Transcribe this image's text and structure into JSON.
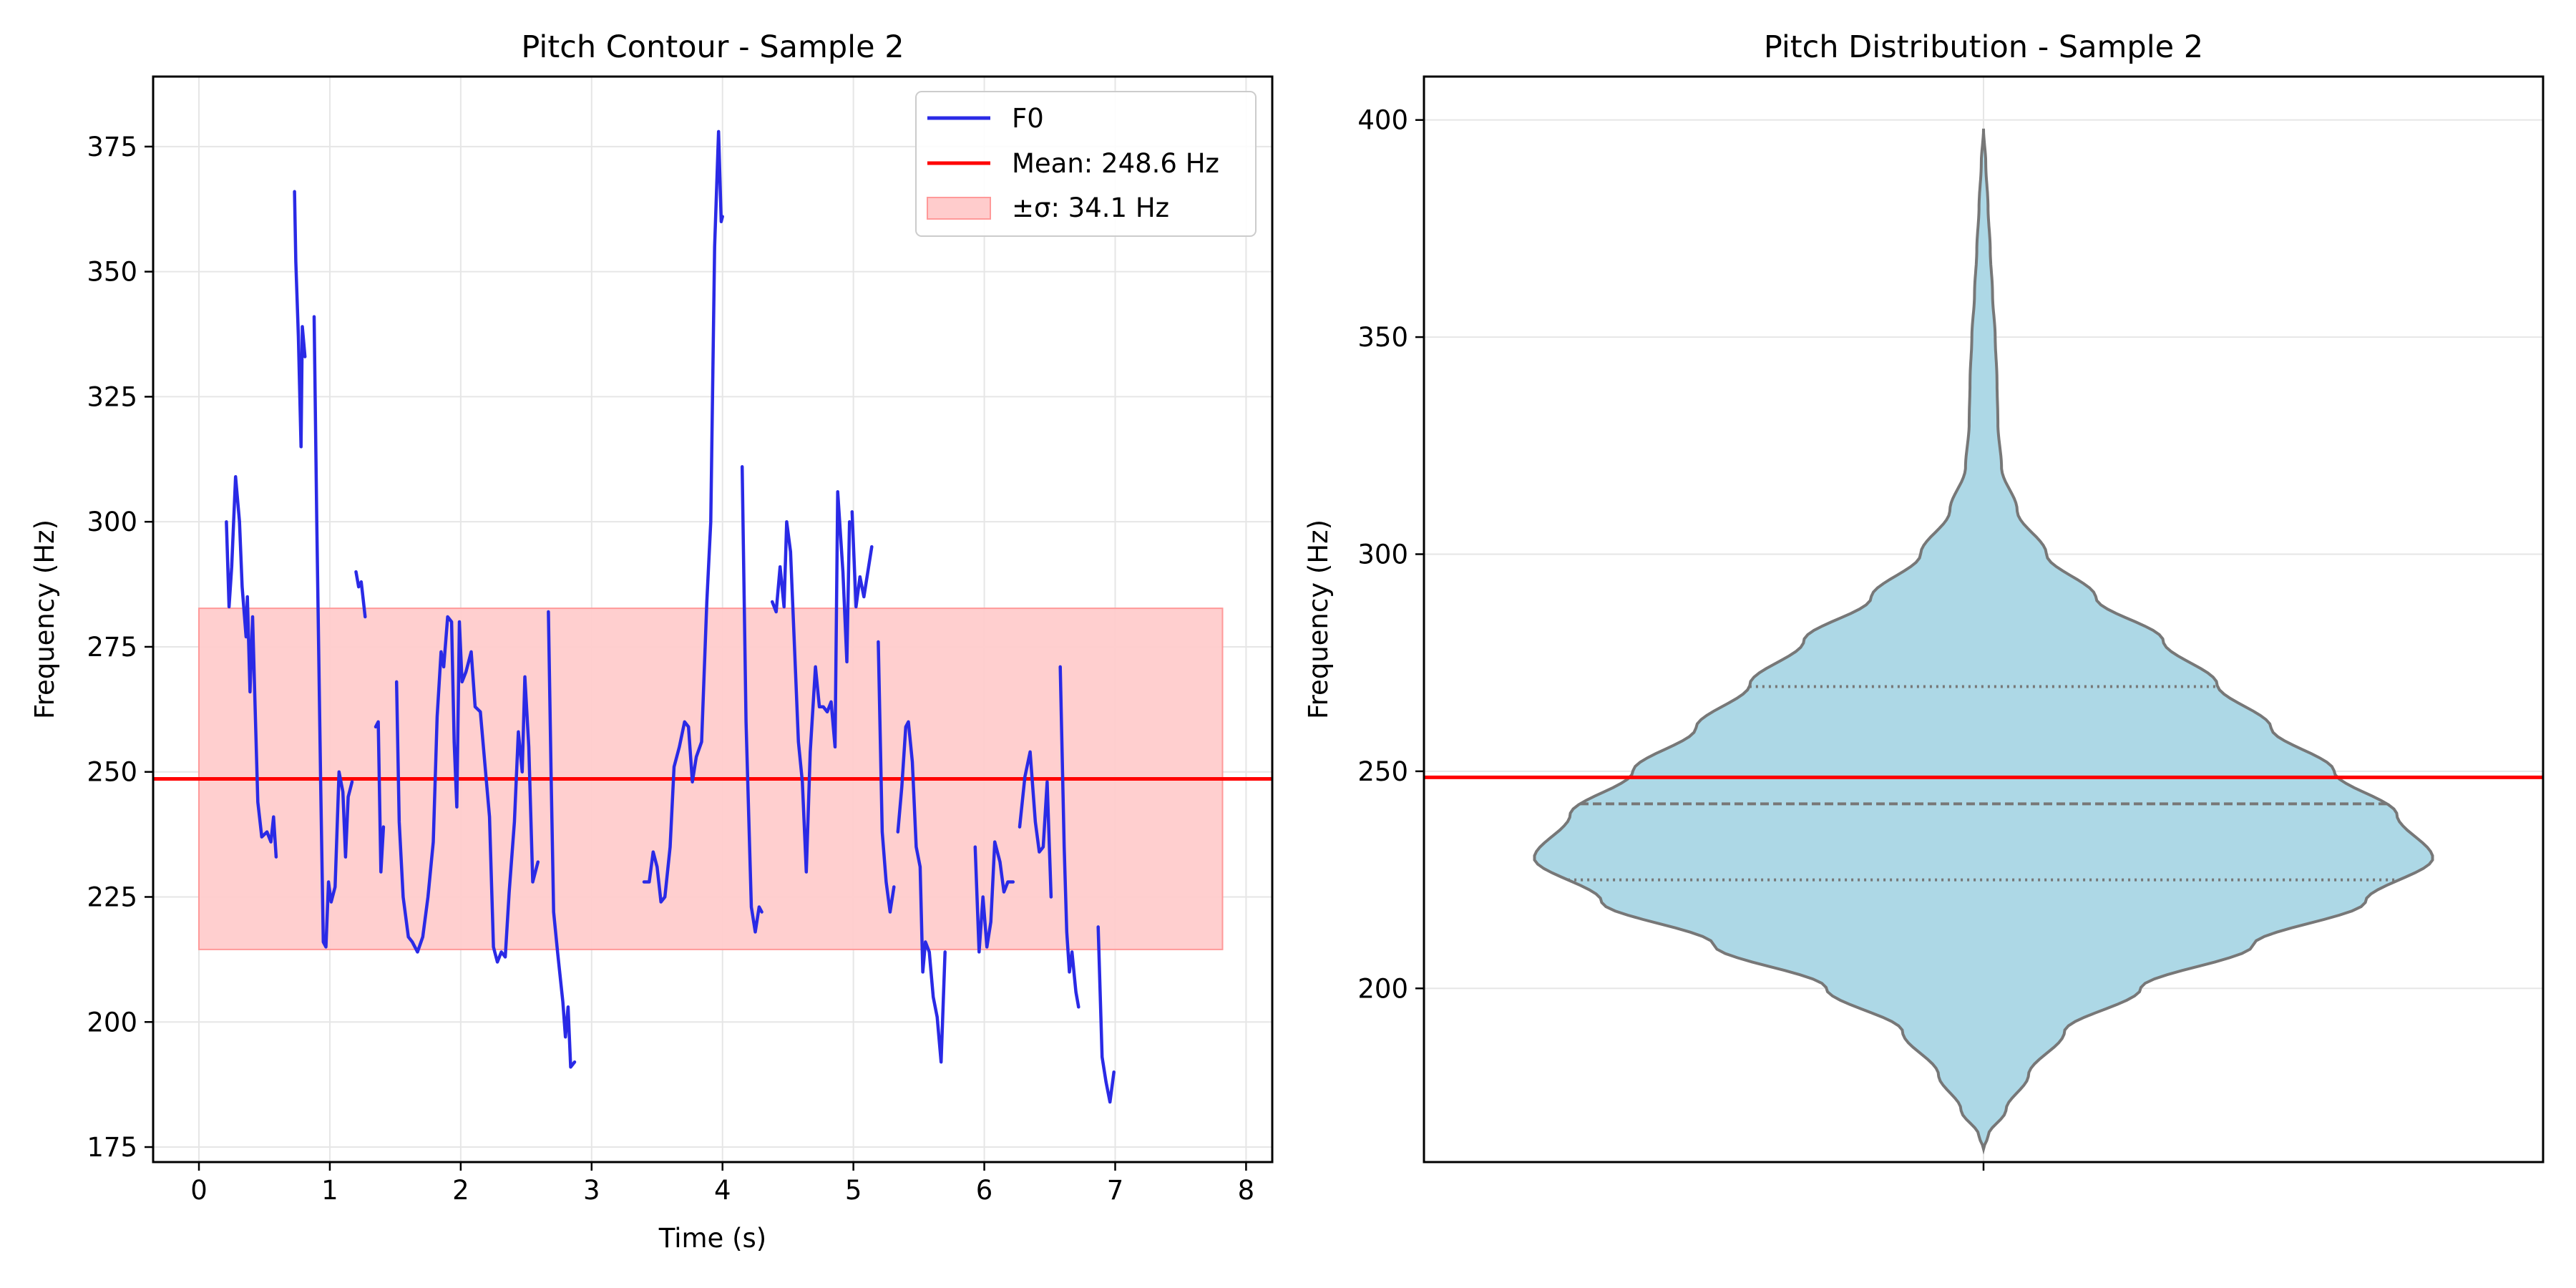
{
  "chart_data": [
    {
      "type": "line",
      "title": "Pitch Contour - Sample 2",
      "xlabel": "Time (s)",
      "ylabel": "Frequency (Hz)",
      "xlim": [
        -0.35,
        8.2
      ],
      "ylim": [
        172,
        389
      ],
      "xticks": [
        0,
        1,
        2,
        3,
        4,
        5,
        6,
        7,
        8
      ],
      "yticks": [
        175,
        200,
        225,
        250,
        275,
        300,
        325,
        350,
        375
      ],
      "grid": true,
      "legend_position": "top-right",
      "colors": {
        "f0": "#2a2ae6",
        "mean": "#ff0000",
        "band": "#ffcccc"
      },
      "mean_line": {
        "label": "Mean: 248.6 Hz",
        "value": 248.6
      },
      "std_band": {
        "label": "±σ: 34.1 Hz",
        "low": 214.5,
        "high": 282.7,
        "x_start": 0,
        "x_end": 7.82
      },
      "series": [
        {
          "name": "F0",
          "segments": [
            [
              [
                0.21,
                300
              ],
              [
                0.23,
                283
              ],
              [
                0.25,
                291
              ],
              [
                0.28,
                309
              ],
              [
                0.31,
                300
              ],
              [
                0.33,
                287
              ],
              [
                0.36,
                277
              ],
              [
                0.37,
                285
              ],
              [
                0.39,
                266
              ],
              [
                0.41,
                281
              ],
              [
                0.43,
                262
              ],
              [
                0.45,
                244
              ],
              [
                0.48,
                237
              ],
              [
                0.52,
                238
              ],
              [
                0.55,
                236
              ],
              [
                0.57,
                241
              ],
              [
                0.59,
                233
              ]
            ],
            [
              [
                0.73,
                366
              ],
              [
                0.74,
                352
              ],
              [
                0.76,
                337
              ],
              [
                0.78,
                315
              ],
              [
                0.79,
                339
              ],
              [
                0.81,
                333
              ]
            ],
            [
              [
                0.88,
                341
              ],
              [
                0.9,
                300
              ],
              [
                0.93,
                248
              ],
              [
                0.95,
                216
              ],
              [
                0.97,
                215
              ],
              [
                0.99,
                228
              ],
              [
                1.01,
                224
              ],
              [
                1.04,
                227
              ],
              [
                1.07,
                250
              ],
              [
                1.1,
                246
              ],
              [
                1.12,
                233
              ],
              [
                1.14,
                245
              ],
              [
                1.17,
                248
              ]
            ],
            [
              [
                1.2,
                290
              ],
              [
                1.22,
                287
              ],
              [
                1.24,
                288
              ],
              [
                1.27,
                281
              ]
            ],
            [
              [
                1.35,
                259
              ],
              [
                1.37,
                260
              ],
              [
                1.39,
                230
              ],
              [
                1.41,
                239
              ]
            ],
            [
              [
                1.51,
                268
              ],
              [
                1.53,
                240
              ],
              [
                1.56,
                225
              ],
              [
                1.6,
                217
              ],
              [
                1.63,
                216
              ],
              [
                1.67,
                214
              ],
              [
                1.71,
                217
              ],
              [
                1.75,
                225
              ],
              [
                1.79,
                236
              ],
              [
                1.82,
                261
              ],
              [
                1.85,
                274
              ],
              [
                1.87,
                271
              ],
              [
                1.9,
                281
              ],
              [
                1.93,
                280
              ],
              [
                1.95,
                256
              ],
              [
                1.97,
                243
              ],
              [
                1.99,
                280
              ],
              [
                2.01,
                268
              ],
              [
                2.04,
                270
              ],
              [
                2.08,
                274
              ],
              [
                2.11,
                263
              ],
              [
                2.15,
                262
              ],
              [
                2.19,
                250
              ],
              [
                2.22,
                241
              ],
              [
                2.25,
                215
              ],
              [
                2.28,
                212
              ],
              [
                2.31,
                214
              ],
              [
                2.34,
                213
              ],
              [
                2.37,
                226
              ],
              [
                2.41,
                240
              ],
              [
                2.44,
                258
              ],
              [
                2.47,
                250
              ],
              [
                2.49,
                269
              ],
              [
                2.52,
                255
              ],
              [
                2.55,
                228
              ],
              [
                2.59,
                232
              ]
            ],
            [
              [
                2.67,
                282
              ],
              [
                2.69,
                250
              ],
              [
                2.71,
                222
              ],
              [
                2.74,
                214
              ],
              [
                2.78,
                204
              ],
              [
                2.8,
                197
              ],
              [
                2.82,
                203
              ],
              [
                2.84,
                191
              ],
              [
                2.87,
                192
              ]
            ]
          ]
        },
        {
          "name": "",
          "segments": [
            [
              [
                3.4,
                228
              ],
              [
                3.44,
                228
              ],
              [
                3.47,
                234
              ],
              [
                3.5,
                231
              ],
              [
                3.53,
                224
              ],
              [
                3.56,
                225
              ],
              [
                3.6,
                235
              ],
              [
                3.63,
                251
              ],
              [
                3.67,
                255
              ],
              [
                3.71,
                260
              ],
              [
                3.74,
                259
              ],
              [
                3.77,
                248
              ],
              [
                3.8,
                253
              ],
              [
                3.84,
                256
              ],
              [
                3.88,
                284
              ],
              [
                3.91,
                300
              ],
              [
                3.94,
                355
              ],
              [
                3.97,
                378
              ],
              [
                3.99,
                360
              ],
              [
                4.0,
                361
              ]
            ],
            [
              [
                4.15,
                311
              ],
              [
                4.18,
                260
              ],
              [
                4.22,
                223
              ],
              [
                4.25,
                218
              ],
              [
                4.28,
                223
              ],
              [
                4.3,
                222
              ]
            ],
            [
              [
                4.38,
                284
              ],
              [
                4.41,
                282
              ],
              [
                4.44,
                291
              ],
              [
                4.47,
                283
              ],
              [
                4.49,
                300
              ],
              [
                4.52,
                294
              ],
              [
                4.55,
                275
              ],
              [
                4.58,
                256
              ],
              [
                4.61,
                248
              ],
              [
                4.64,
                230
              ],
              [
                4.67,
                254
              ],
              [
                4.71,
                271
              ],
              [
                4.74,
                263
              ],
              [
                4.77,
                263
              ],
              [
                4.8,
                262
              ],
              [
                4.83,
                264
              ],
              [
                4.86,
                255
              ],
              [
                4.88,
                306
              ],
              [
                4.92,
                290
              ],
              [
                4.95,
                272
              ],
              [
                4.97,
                300
              ]
            ],
            [
              [
                4.99,
                302
              ],
              [
                5.02,
                283
              ],
              [
                5.05,
                289
              ],
              [
                5.08,
                285
              ],
              [
                5.11,
                290
              ],
              [
                5.14,
                295
              ]
            ],
            [
              [
                5.19,
                276
              ],
              [
                5.22,
                238
              ],
              [
                5.25,
                228
              ],
              [
                5.28,
                222
              ],
              [
                5.31,
                227
              ]
            ],
            [
              [
                5.34,
                238
              ],
              [
                5.37,
                247
              ],
              [
                5.4,
                259
              ],
              [
                5.42,
                260
              ],
              [
                5.45,
                252
              ],
              [
                5.48,
                235
              ],
              [
                5.51,
                231
              ],
              [
                5.53,
                210
              ],
              [
                5.55,
                216
              ],
              [
                5.58,
                214
              ],
              [
                5.61,
                205
              ],
              [
                5.64,
                201
              ],
              [
                5.67,
                192
              ],
              [
                5.7,
                214
              ]
            ],
            [
              [
                5.93,
                235
              ],
              [
                5.96,
                214
              ],
              [
                5.99,
                225
              ],
              [
                6.02,
                215
              ],
              [
                6.05,
                220
              ],
              [
                6.08,
                236
              ],
              [
                6.12,
                232
              ],
              [
                6.15,
                226
              ],
              [
                6.18,
                228
              ],
              [
                6.22,
                228
              ]
            ],
            [
              [
                6.27,
                239
              ],
              [
                6.31,
                249
              ],
              [
                6.35,
                254
              ],
              [
                6.39,
                240
              ],
              [
                6.42,
                234
              ],
              [
                6.45,
                235
              ],
              [
                6.48,
                248
              ],
              [
                6.51,
                225
              ]
            ],
            [
              [
                6.58,
                271
              ],
              [
                6.61,
                235
              ],
              [
                6.63,
                218
              ],
              [
                6.65,
                210
              ],
              [
                6.67,
                214
              ],
              [
                6.7,
                206
              ],
              [
                6.72,
                203
              ]
            ],
            [
              [
                6.87,
                219
              ],
              [
                6.9,
                193
              ],
              [
                6.93,
                188
              ],
              [
                6.96,
                184
              ],
              [
                6.99,
                190
              ]
            ]
          ]
        }
      ]
    },
    {
      "type": "violin",
      "title": "Pitch Distribution - Sample 2",
      "ylabel": "Frequency (Hz)",
      "ylim": [
        160,
        410
      ],
      "yticks": [
        200,
        250,
        300,
        350,
        400
      ],
      "grid": true,
      "colors": {
        "body": "#add8e6",
        "edge": "#777777",
        "mean": "#ff0000"
      },
      "mean_line": 248.6,
      "quartiles": {
        "q1": 225,
        "median": 242.5,
        "q3": 269.5
      },
      "range": [
        163,
        398
      ],
      "density_profile": [
        [
          163,
          0
        ],
        [
          166,
          0.01
        ],
        [
          172,
          0.05
        ],
        [
          180,
          0.1
        ],
        [
          190,
          0.18
        ],
        [
          200,
          0.35
        ],
        [
          210,
          0.6
        ],
        [
          220,
          0.85
        ],
        [
          230,
          1.0
        ],
        [
          240,
          0.92
        ],
        [
          250,
          0.78
        ],
        [
          260,
          0.64
        ],
        [
          270,
          0.52
        ],
        [
          280,
          0.4
        ],
        [
          290,
          0.25
        ],
        [
          300,
          0.14
        ],
        [
          310,
          0.075
        ],
        [
          320,
          0.04
        ],
        [
          330,
          0.032
        ],
        [
          340,
          0.03
        ],
        [
          350,
          0.026
        ],
        [
          360,
          0.02
        ],
        [
          370,
          0.015
        ],
        [
          380,
          0.01
        ],
        [
          390,
          0.005
        ],
        [
          398,
          0
        ]
      ]
    }
  ]
}
